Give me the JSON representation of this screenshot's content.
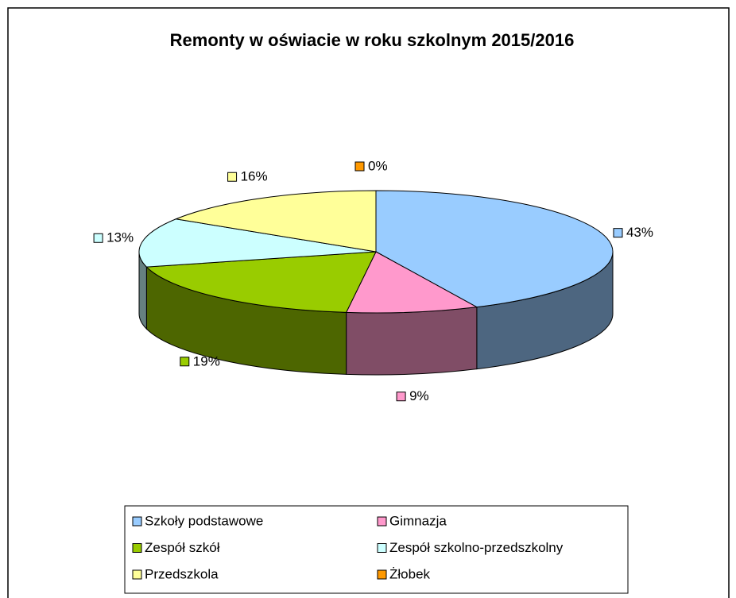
{
  "chart_data": {
    "type": "pie3d",
    "title": "Remonty w oświacie w roku szkolnym 2015/2016",
    "categories": [
      "Szkoły podstawowe",
      "Gimnazja",
      "Zespół szkół",
      "Zespół szkolno-przedszkolny",
      "Przedszkola",
      "Żłobek"
    ],
    "values": [
      43,
      9,
      19,
      13,
      16,
      0
    ],
    "value_labels": [
      "43%",
      "9%",
      "19%",
      "13%",
      "16%",
      "0%"
    ],
    "colors": [
      "#99ccff",
      "#ff99cc",
      "#99cc00",
      "#ccffff",
      "#ffff99",
      "#ff9900"
    ],
    "legend": "bottom"
  }
}
